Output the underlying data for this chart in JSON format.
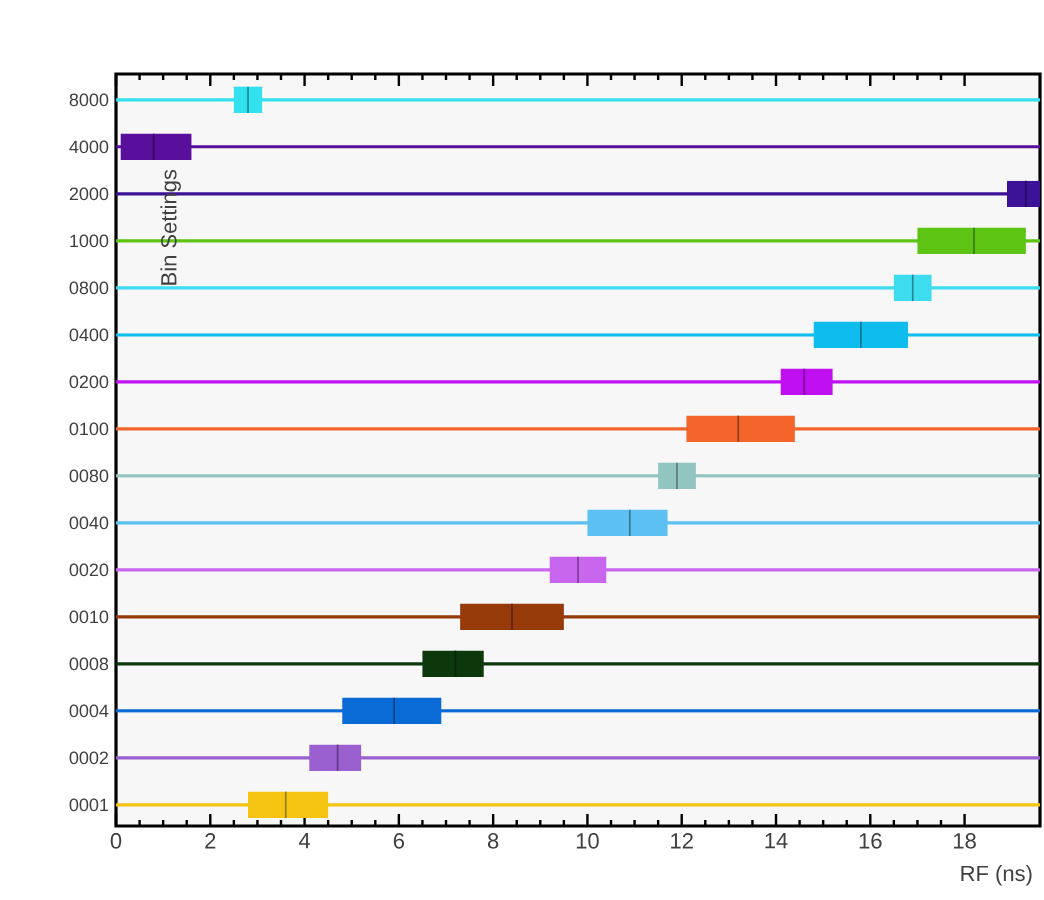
{
  "chart_data": {
    "type": "box",
    "orientation": "horizontal",
    "xlabel": "RF (ns)",
    "ylabel": "Bin Settings",
    "categories": [
      "8000",
      "4000",
      "2000",
      "1000",
      "0800",
      "0400",
      "0200",
      "0100",
      "0080",
      "0040",
      "0020",
      "0010",
      "0008",
      "0004",
      "0002",
      "0001"
    ],
    "colors": [
      "#33e0ee",
      "#5a0f9a",
      "#3c1296",
      "#5ec414",
      "#3ddcee",
      "#0fbcee",
      "#c00ff0",
      "#f4652c",
      "#92c4c0",
      "#5cc0f2",
      "#c866ee",
      "#963a0a",
      "#0c380c",
      "#0a6ad6",
      "#9a60d0",
      "#f4c410"
    ],
    "boxes": [
      {
        "low": 0,
        "q1": 2.5,
        "median": 2.8,
        "q3": 3.1,
        "high": 19.6
      },
      {
        "low": 0,
        "q1": 0.1,
        "median": 0.8,
        "q3": 1.6,
        "high": 19.6
      },
      {
        "low": 0,
        "q1": 18.9,
        "median": 19.3,
        "q3": 19.6,
        "high": 19.6
      },
      {
        "low": 0,
        "q1": 17.0,
        "median": 18.2,
        "q3": 19.3,
        "high": 19.6
      },
      {
        "low": 0,
        "q1": 16.5,
        "median": 16.9,
        "q3": 17.3,
        "high": 19.6
      },
      {
        "low": 0,
        "q1": 14.8,
        "median": 15.8,
        "q3": 16.8,
        "high": 19.6
      },
      {
        "low": 0,
        "q1": 14.1,
        "median": 14.6,
        "q3": 15.2,
        "high": 19.6
      },
      {
        "low": 0,
        "q1": 12.1,
        "median": 13.2,
        "q3": 14.4,
        "high": 19.6
      },
      {
        "low": 0,
        "q1": 11.5,
        "median": 11.9,
        "q3": 12.3,
        "high": 19.6
      },
      {
        "low": 0,
        "q1": 10.0,
        "median": 10.9,
        "q3": 11.7,
        "high": 19.6
      },
      {
        "low": 0,
        "q1": 9.2,
        "median": 9.8,
        "q3": 10.4,
        "high": 19.6
      },
      {
        "low": 0,
        "q1": 7.3,
        "median": 8.4,
        "q3": 9.5,
        "high": 19.6
      },
      {
        "low": 0,
        "q1": 6.5,
        "median": 7.2,
        "q3": 7.8,
        "high": 19.6
      },
      {
        "low": 0,
        "q1": 4.8,
        "median": 5.9,
        "q3": 6.9,
        "high": 19.6
      },
      {
        "low": 0,
        "q1": 4.1,
        "median": 4.7,
        "q3": 5.2,
        "high": 19.6
      },
      {
        "low": 0,
        "q1": 2.8,
        "median": 3.6,
        "q3": 4.5,
        "high": 19.6
      }
    ],
    "xlim": [
      0,
      19.6
    ],
    "xticks": [
      0,
      2,
      4,
      6,
      8,
      10,
      12,
      14,
      16,
      18
    ]
  }
}
